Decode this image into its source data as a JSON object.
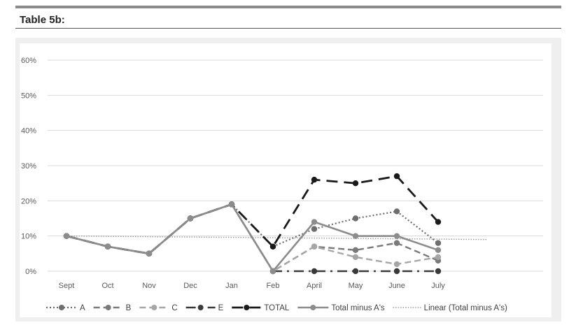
{
  "header": {
    "title": "Table 5b:"
  },
  "chart_data": {
    "type": "line",
    "categories": [
      "Sept",
      "Oct",
      "Nov",
      "Dec",
      "Jan",
      "Feb",
      "April",
      "May",
      "June",
      "July"
    ],
    "ylim": [
      0,
      60
    ],
    "yticks": [
      "0%",
      "10%",
      "20%",
      "30%",
      "40%",
      "50%",
      "60%"
    ],
    "ytick_values": [
      0,
      10,
      20,
      30,
      40,
      50,
      60
    ],
    "grid": true,
    "legend_position": "bottom",
    "series": [
      {
        "name": "A",
        "style": "dotted",
        "color": "#6e6e6e",
        "values": [
          10,
          7,
          5,
          15,
          19,
          7,
          12,
          15,
          17,
          8
        ]
      },
      {
        "name": "B",
        "style": "dashed",
        "color": "#7a7a7a",
        "values": [
          10,
          7,
          5,
          15,
          19,
          0,
          7,
          6,
          8,
          3
        ]
      },
      {
        "name": "C",
        "style": "dashed",
        "color": "#a6a6a6",
        "values": [
          10,
          7,
          5,
          15,
          19,
          0,
          7,
          4,
          2,
          4
        ]
      },
      {
        "name": "E",
        "style": "dashdot",
        "color": "#3a3a3a",
        "values": [
          10,
          7,
          5,
          15,
          19,
          0,
          0,
          0,
          0,
          0
        ]
      },
      {
        "name": "TOTAL",
        "style": "longdash",
        "color": "#1a1a1a",
        "values": [
          10,
          7,
          5,
          15,
          19,
          7,
          26,
          25,
          27,
          14
        ]
      },
      {
        "name": "Total minus A's",
        "style": "solid",
        "color": "#8c8c8c",
        "values": [
          10,
          7,
          5,
          15,
          19,
          0,
          14,
          10,
          10,
          6
        ]
      }
    ],
    "trendline": {
      "name": "Linear (Total minus A's)",
      "style": "dotted",
      "color": "#9a9a9a",
      "start": 10,
      "end": 9,
      "x_end": 10.2
    }
  }
}
